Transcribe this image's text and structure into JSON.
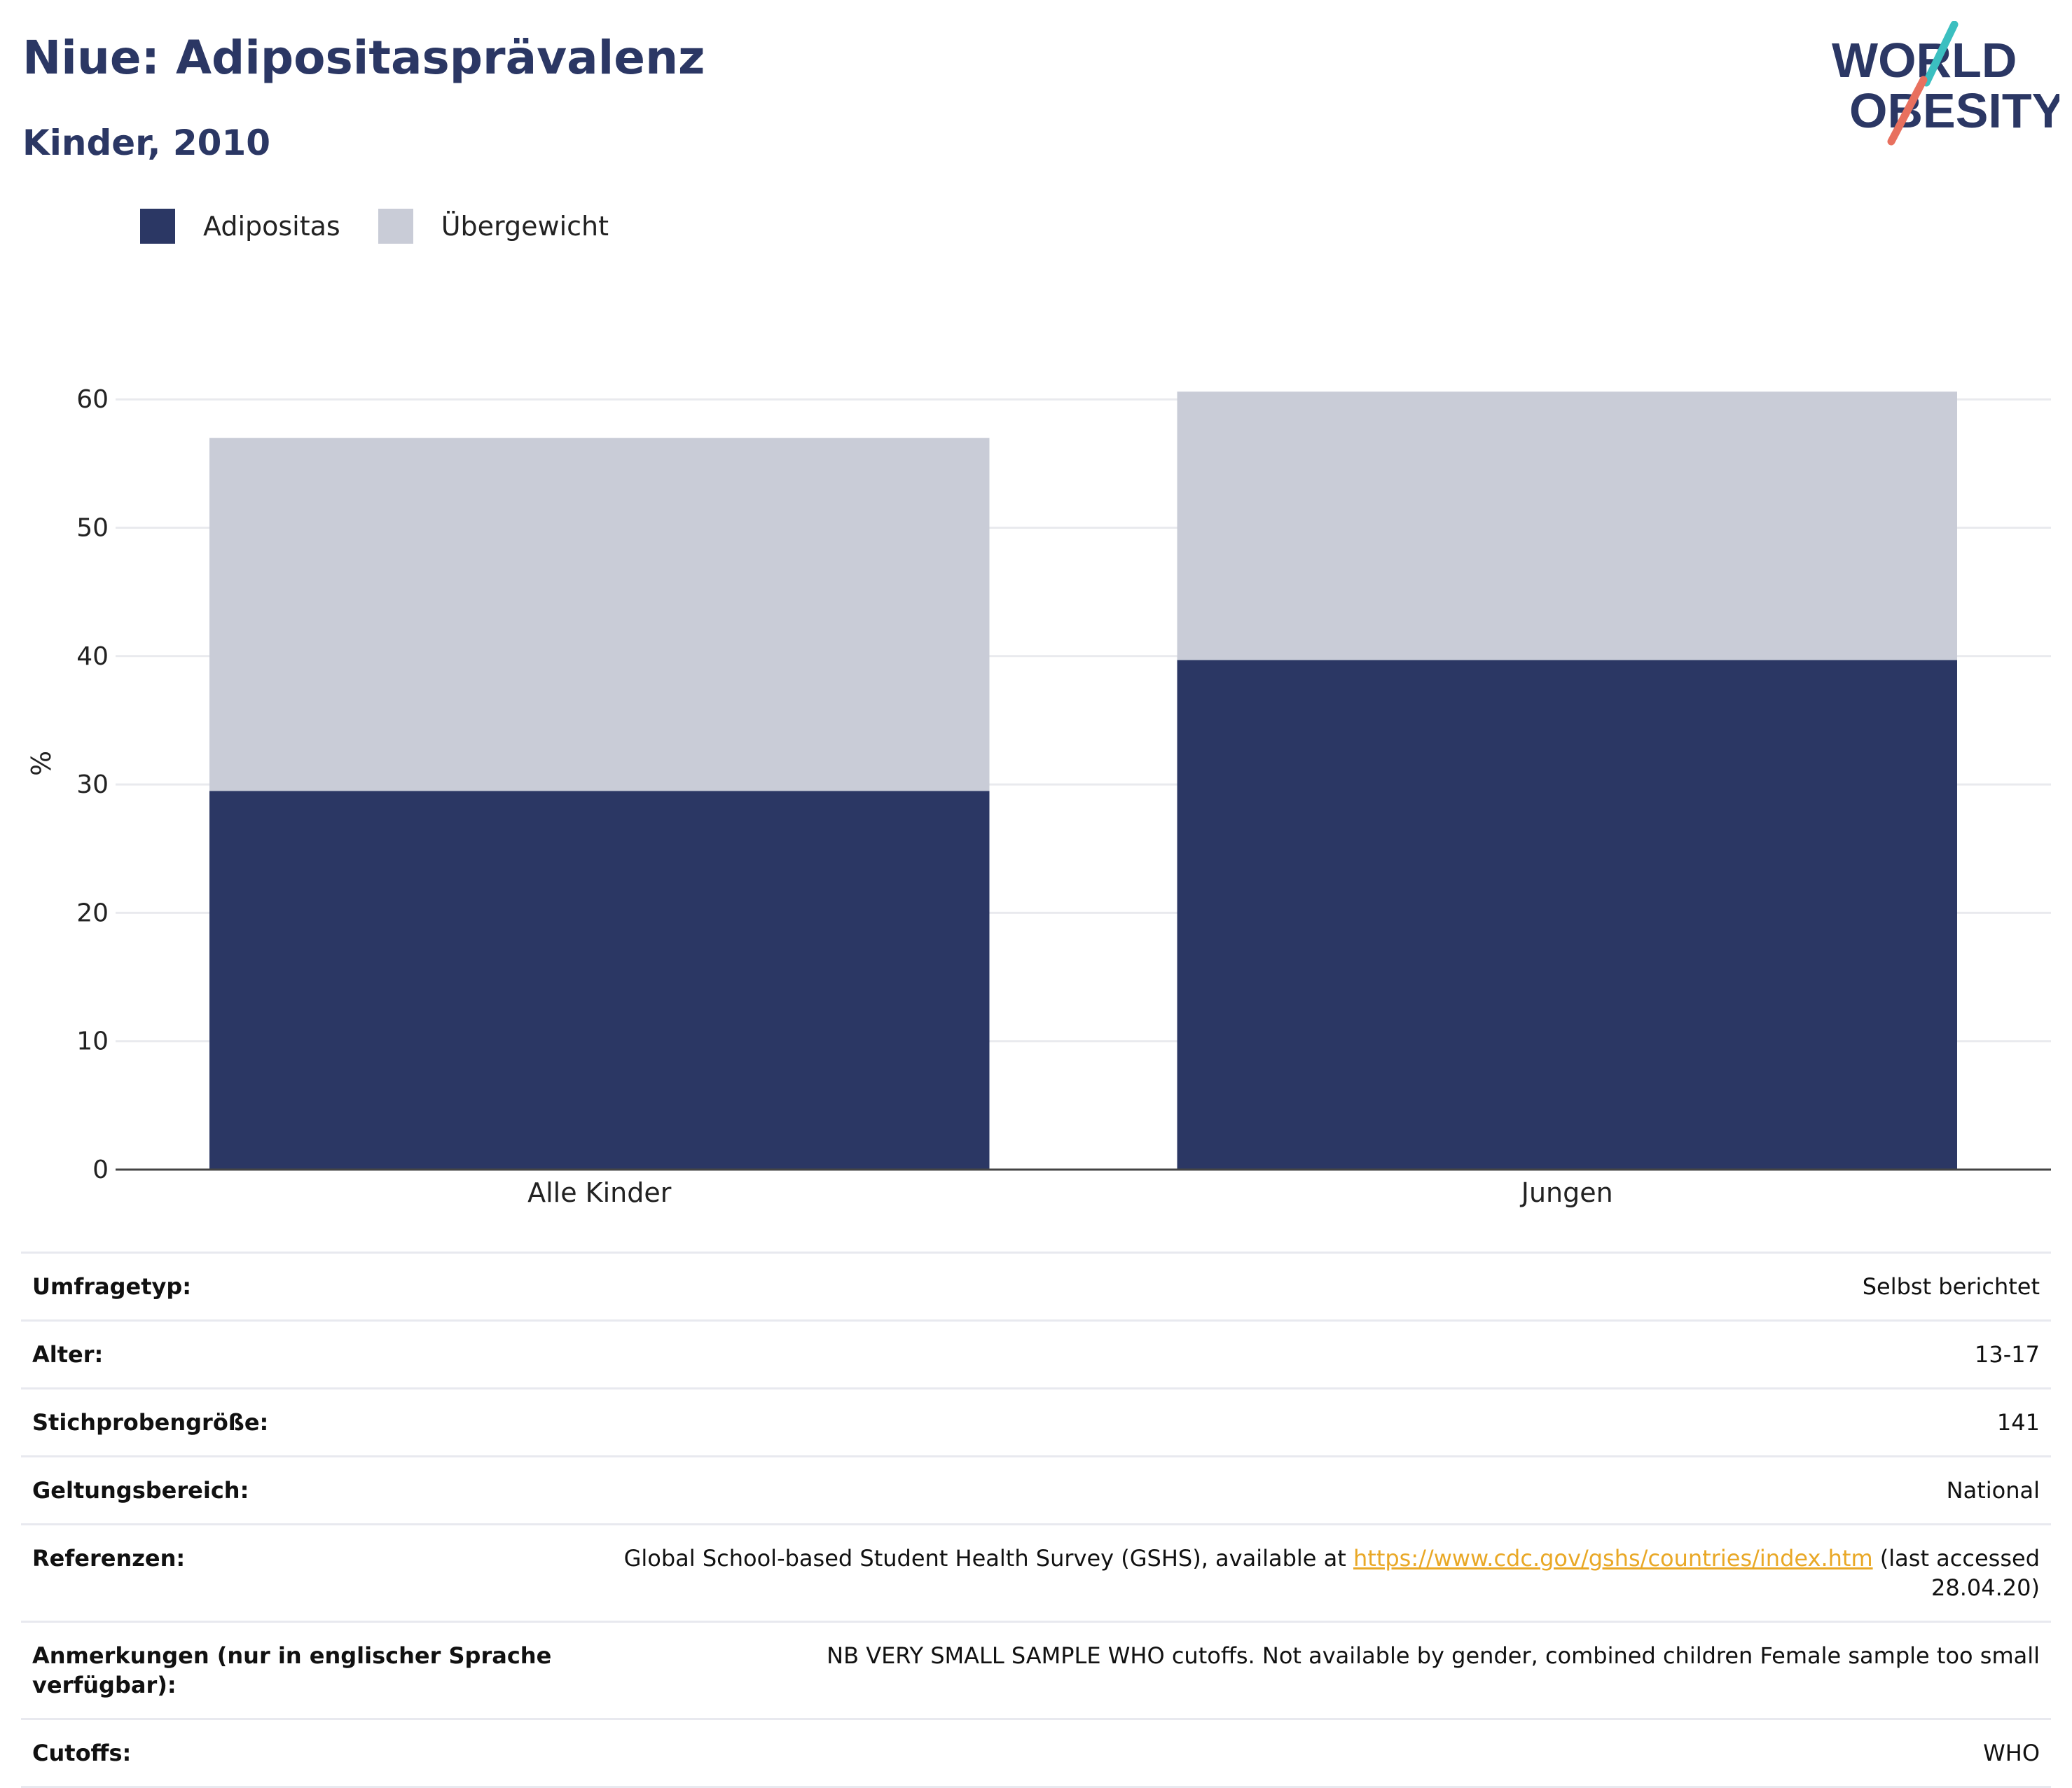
{
  "header": {
    "title": "Niue: Adipositasprävalenz",
    "subtitle": "Kinder, 2010"
  },
  "logo": {
    "line1": "WORLD",
    "line2": "OBESITY"
  },
  "colors": {
    "adipositas": "#2b3764",
    "uebergewicht": "#c9ccd7",
    "grid": "#e9eaee",
    "axis": "#444444",
    "title": "#2b3764",
    "link": "#e9a826",
    "logo_teal": "#3bbfc0",
    "logo_coral": "#e8705e"
  },
  "legend": [
    {
      "label": "Adipositas",
      "color": "#2b3764"
    },
    {
      "label": "Übergewicht",
      "color": "#c9ccd7"
    }
  ],
  "chart_data": {
    "type": "bar",
    "stacked": true,
    "categories": [
      "Alle Kinder",
      "Jungen"
    ],
    "series": [
      {
        "name": "Adipositas",
        "values": [
          29.5,
          39.7
        ]
      },
      {
        "name": "Übergewicht",
        "values": [
          27.5,
          20.9
        ]
      }
    ],
    "ylabel": "%",
    "xlabel": "",
    "ylim": [
      0,
      65
    ],
    "yticks": [
      0,
      10,
      20,
      30,
      40,
      50,
      60
    ],
    "grid": true,
    "legend_position": "top-left"
  },
  "meta": {
    "rows": [
      {
        "key": "Umfragetyp:",
        "value": "Selbst berichtet"
      },
      {
        "key": "Alter:",
        "value": "13-17"
      },
      {
        "key": "Stichprobengröße:",
        "value": "141"
      },
      {
        "key": "Geltungsbereich:",
        "value": "National"
      }
    ],
    "references": {
      "key": "Referenzen:",
      "before": "Global School-based Student Health Survey (GSHS), available at ",
      "link": "https://www.cdc.gov/gshs/countries/index.htm",
      "after": " (last accessed 28.04.20)"
    },
    "notes": {
      "key": "Anmerkungen (nur in englischer Sprache verfügbar):",
      "value": "NB VERY SMALL SAMPLE WHO cutoffs. Not available by gender, combined children Female sample too small"
    },
    "cutoffs": {
      "key": "Cutoffs:",
      "value": "WHO"
    }
  }
}
